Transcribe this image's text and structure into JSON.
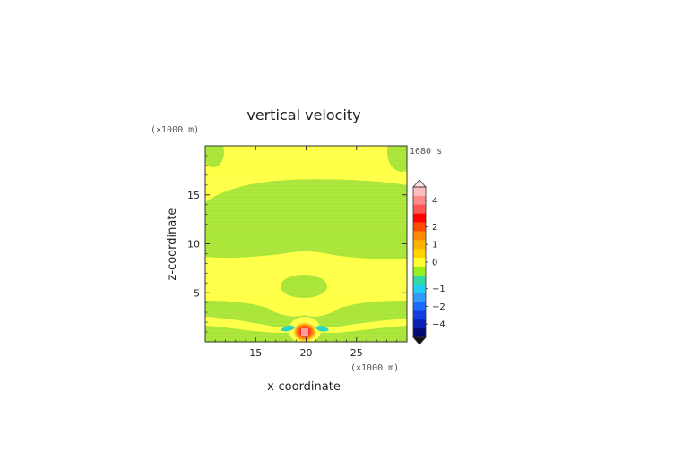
{
  "chart_data": {
    "type": "heatmap",
    "title": "vertical velocity",
    "time_label": "1680 s",
    "xlabel": "x-coordinate",
    "ylabel": "z-coordinate",
    "x_unit": "(×1000 m)",
    "y_unit": "(×1000 m)",
    "xlim": [
      10,
      30
    ],
    "ylim": [
      0,
      20
    ],
    "x_ticks": [
      "15",
      "20",
      "25"
    ],
    "y_ticks": [
      "5",
      "10",
      "15"
    ],
    "colorbar": {
      "labels": [
        "4",
        "2",
        "1",
        "0",
        "−1",
        "−2",
        "−4"
      ],
      "colors_top_to_bottom": [
        "#ffbcbc",
        "#ff8a8a",
        "#ff5555",
        "#ff0000",
        "#ff4a00",
        "#ff8c00",
        "#ffb000",
        "#ffd200",
        "#ffff33",
        "#99ee22",
        "#33d9a0",
        "#22ccee",
        "#3399ff",
        "#1c6cff",
        "#1040e0",
        "#0a20b0",
        "#050a70"
      ],
      "extend": "both"
    },
    "features": [
      {
        "name": "background",
        "value": 0.0,
        "color": "#a8e534"
      },
      {
        "name": "positive bands",
        "value": 0.2,
        "color": "#ffff44"
      },
      {
        "name": "updraft core",
        "x": 20,
        "z": 1.0,
        "value": 4.5,
        "color": "#ff0000"
      },
      {
        "name": "weak downdrafts",
        "x": [
          18.3,
          21.7
        ],
        "z": 1.8,
        "value": -0.7,
        "color": "#2ad4c0"
      }
    ]
  }
}
